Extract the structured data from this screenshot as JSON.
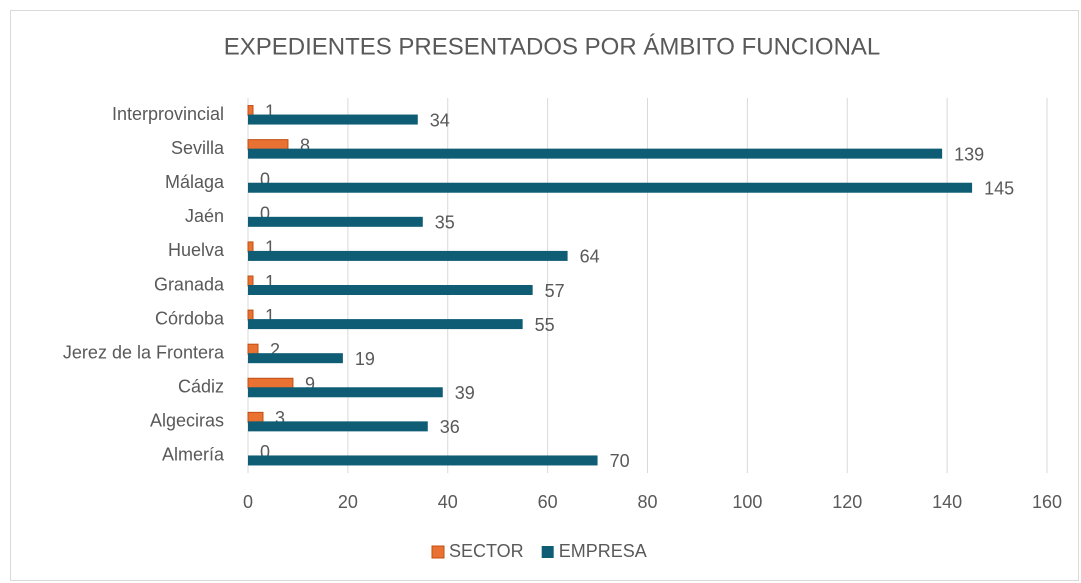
{
  "chart_data": {
    "type": "bar",
    "orientation": "horizontal",
    "title": "EXPEDIENTES PRESENTADOS POR ÁMBITO FUNCIONAL",
    "categories": [
      "Interprovincial",
      "Sevilla",
      "Málaga",
      "Jaén",
      "Huelva",
      "Granada",
      "Córdoba",
      "Jerez de la Frontera",
      "Cádiz",
      "Algeciras",
      "Almería"
    ],
    "series": [
      {
        "name": "SECTOR",
        "color": "#e97132",
        "values": [
          1,
          8,
          0,
          0,
          1,
          1,
          1,
          2,
          9,
          3,
          0
        ]
      },
      {
        "name": "EMPRESA",
        "color": "#0f5d75",
        "values": [
          34,
          139,
          145,
          35,
          64,
          57,
          55,
          19,
          39,
          36,
          70
        ]
      }
    ],
    "xlim": [
      0,
      160
    ],
    "xticks": [
      0,
      20,
      40,
      60,
      80,
      100,
      120,
      140,
      160
    ],
    "grid": true,
    "legend": "bottom"
  }
}
